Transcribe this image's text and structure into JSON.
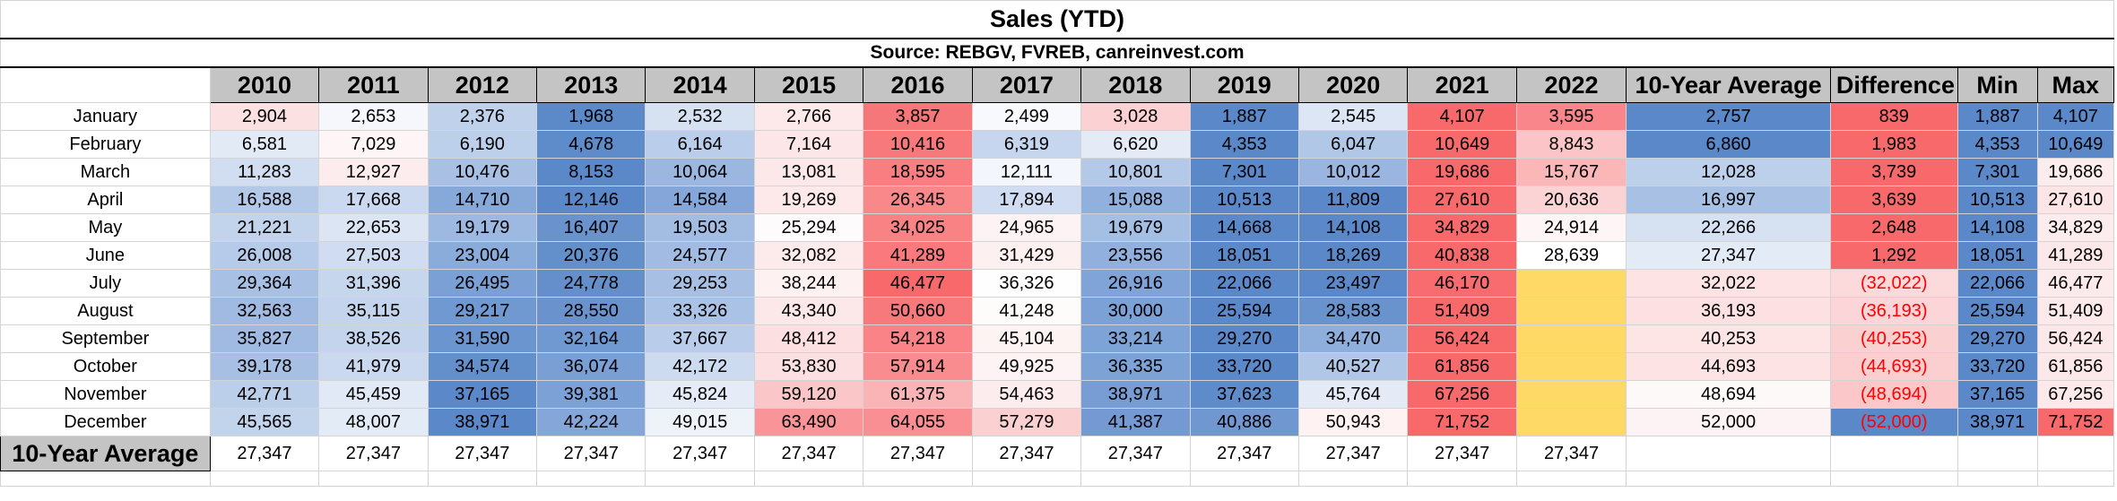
{
  "title": "Sales (YTD)",
  "source": "Source: REBGV, FVREB, canreinvest.com",
  "headers": [
    "2010",
    "2011",
    "2012",
    "2013",
    "2014",
    "2015",
    "2016",
    "2017",
    "2018",
    "2019",
    "2020",
    "2021",
    "2022",
    "10-Year Average",
    "Difference",
    "Min",
    "Max"
  ],
  "rows": [
    {
      "month": "January",
      "cells": [
        "2,904",
        "2,653",
        "2,376",
        "1,968",
        "2,532",
        "2,766",
        "3,857",
        "2,499",
        "3,028",
        "1,887",
        "2,545",
        "4,107",
        "3,595",
        "2,757",
        "839",
        "1,887",
        "4,107"
      ],
      "colors": [
        "#fbe1e2",
        "#f5f7fd",
        "#bfd1eb",
        "#5c89c8",
        "#d6e1f2",
        "#fde9ea",
        "#f5777a",
        "#f7f9fd",
        "#fcd1d3",
        "#5a88c8",
        "#dce6f4",
        "#f8696b",
        "#f9868a",
        "#5a88c8",
        "#f8696b",
        "#5a88c8",
        "#5a88c8"
      ]
    },
    {
      "month": "February",
      "cells": [
        "6,581",
        "7,029",
        "6,190",
        "4,678",
        "6,164",
        "7,164",
        "10,416",
        "6,319",
        "6,620",
        "4,353",
        "6,047",
        "10,649",
        "8,843",
        "6,860",
        "1,983",
        "4,353",
        "10,649"
      ],
      "colors": [
        "#e2eaf6",
        "#fdf5f6",
        "#bdd0eb",
        "#5e8bc9",
        "#bacdea",
        "#fce6e7",
        "#f8797c",
        "#c6d6ee",
        "#e4ebf7",
        "#5a88c8",
        "#b1c7e7",
        "#f8696b",
        "#fbc5c7",
        "#5a88c8",
        "#f8696b",
        "#5a88c8",
        "#5a88c8"
      ]
    },
    {
      "month": "March",
      "cells": [
        "11,283",
        "12,927",
        "10,476",
        "8,153",
        "10,064",
        "13,081",
        "18,595",
        "12,111",
        "10,801",
        "7,301",
        "10,012",
        "19,686",
        "15,767",
        "12,028",
        "3,739",
        "7,301",
        "19,686"
      ],
      "colors": [
        "#d1ddf1",
        "#fdeced",
        "#a7c0e4",
        "#5a88c8",
        "#9bb7e0",
        "#fce8e9",
        "#f97e81",
        "#f3f6fc",
        "#b4c9e8",
        "#5a88c8",
        "#9ab6e0",
        "#f8696b",
        "#fbb6b8",
        "#bdd0eb",
        "#f8696b",
        "#5a88c8",
        "#fdecec"
      ]
    },
    {
      "month": "April",
      "cells": [
        "16,588",
        "17,668",
        "14,710",
        "12,146",
        "14,584",
        "19,269",
        "26,345",
        "17,894",
        "15,088",
        "10,513",
        "11,809",
        "27,610",
        "20,636",
        "16,997",
        "3,639",
        "10,513",
        "27,610"
      ],
      "colors": [
        "#b4c9e8",
        "#cad9ef",
        "#87a9da",
        "#5a88c8",
        "#84a6d9",
        "#fde9ea",
        "#f9888b",
        "#d0dcf1",
        "#91b0dd",
        "#5a88c8",
        "#5a88c8",
        "#f8696b",
        "#fbd3d4",
        "#a7c0e4",
        "#f8696b",
        "#5a88c8",
        "#fde4e5"
      ]
    },
    {
      "month": "May",
      "cells": [
        "21,221",
        "22,653",
        "19,179",
        "16,407",
        "19,503",
        "25,294",
        "34,025",
        "24,965",
        "19,679",
        "14,668",
        "14,108",
        "34,829",
        "24,914",
        "22,266",
        "2,648",
        "14,108",
        "34,829"
      ],
      "colors": [
        "#c2d3ec",
        "#dbe5f4",
        "#9db8e1",
        "#6a93cd",
        "#a3bce2",
        "#fefbfc",
        "#f98285",
        "#fdf3f4",
        "#a5bee3",
        "#5a88c8",
        "#5a88c8",
        "#f8696b",
        "#fdf5f6",
        "#d6e1f2",
        "#f8696b",
        "#5a88c8",
        "#fdeced"
      ]
    },
    {
      "month": "June",
      "cells": [
        "26,008",
        "27,503",
        "23,004",
        "20,376",
        "24,577",
        "32,082",
        "41,289",
        "31,429",
        "23,556",
        "18,051",
        "18,269",
        "40,838",
        "28,639",
        "27,347",
        "1,292",
        "18,051",
        "41,289"
      ],
      "colors": [
        "#b6cae9",
        "#d0dcf1",
        "#8aacdb",
        "#6390ca",
        "#a1bbe2",
        "#fdeaeb",
        "#f9797c",
        "#fdf0f1",
        "#91b0dd",
        "#5a88c8",
        "#5a88c8",
        "#f8696b",
        "#ffffff",
        "#e3ebf7",
        "#f8696b",
        "#5a88c8",
        "#fde8e9"
      ]
    },
    {
      "month": "July",
      "cells": [
        "29,364",
        "31,396",
        "26,495",
        "24,778",
        "29,253",
        "38,244",
        "46,477",
        "36,326",
        "26,916",
        "22,066",
        "23,497",
        "46,170",
        "",
        "32,022",
        "(32,022)",
        "22,066",
        "46,477"
      ],
      "colors": [
        "#a7c0e4",
        "#c5d6ed",
        "#7aa0d5",
        "#648fcb",
        "#a6bfe3",
        "#fdf1f2",
        "#f8696b",
        "#fefefe",
        "#80a4d8",
        "#5a88c8",
        "#5a88c8",
        "#f86b6e",
        "#ffd966",
        "#fde3e4",
        "#fcd9da",
        "#5a88c8",
        "#fdeaeb"
      ]
    },
    {
      "month": "August",
      "cells": [
        "32,563",
        "35,115",
        "29,217",
        "28,550",
        "33,326",
        "43,340",
        "50,660",
        "41,248",
        "30,000",
        "25,594",
        "28,583",
        "51,409",
        "",
        "36,193",
        "(36,193)",
        "25,594",
        "51,409"
      ],
      "colors": [
        "#a0bae1",
        "#c4d4ed",
        "#7199d1",
        "#6a93ce",
        "#aac2e5",
        "#fce8e9",
        "#f8797c",
        "#fefbfb",
        "#7ba1d6",
        "#5a88c8",
        "#6893cd",
        "#f8696b",
        "#ffd966",
        "#fde0e1",
        "#fbd5d7",
        "#5a88c8",
        "#fde9ea"
      ]
    },
    {
      "month": "September",
      "cells": [
        "35,827",
        "38,526",
        "31,590",
        "32,164",
        "37,667",
        "48,412",
        "54,218",
        "45,104",
        "33,214",
        "29,270",
        "34,470",
        "56,424",
        "",
        "40,253",
        "(40,253)",
        "29,270",
        "56,424"
      ],
      "colors": [
        "#a0bae1",
        "#c4d4ed",
        "#6b95ce",
        "#7199d1",
        "#b9cdea",
        "#fcdfe0",
        "#f98386",
        "#fdf3f3",
        "#7ea3d7",
        "#5a88c8",
        "#8eaedc",
        "#f8696b",
        "#ffd966",
        "#fde4e5",
        "#fbd0d1",
        "#5a88c8",
        "#fde8e9"
      ]
    },
    {
      "month": "October",
      "cells": [
        "39,178",
        "41,979",
        "34,574",
        "36,074",
        "42,172",
        "53,830",
        "57,914",
        "49,925",
        "36,335",
        "33,720",
        "40,527",
        "61,856",
        "",
        "44,693",
        "(44,693)",
        "33,720",
        "61,856"
      ],
      "colors": [
        "#a6bfe3",
        "#cad9ef",
        "#6390ca",
        "#7a9fd5",
        "#cddbf0",
        "#fce0e1",
        "#f98c8f",
        "#fdf3f4",
        "#7ca2d6",
        "#5a88c8",
        "#b1c7e7",
        "#f8696b",
        "#ffd966",
        "#fde3e4",
        "#fbcfd0",
        "#5a88c8",
        "#fde8e9"
      ]
    },
    {
      "month": "November",
      "cells": [
        "42,771",
        "45,459",
        "37,165",
        "39,381",
        "45,824",
        "59,120",
        "61,375",
        "54,463",
        "38,971",
        "37,623",
        "45,764",
        "67,256",
        "",
        "48,694",
        "(48,694)",
        "37,165",
        "67,256"
      ],
      "colors": [
        "#bbcfea",
        "#e1e9f6",
        "#5a88c8",
        "#7ba1d6",
        "#e5ecf7",
        "#fbc6c8",
        "#fab4b6",
        "#fdeced",
        "#779dd4",
        "#5e8bc9",
        "#e4ebf7",
        "#f8696b",
        "#ffd966",
        "#fdf9f9",
        "#fbc7c8",
        "#5a88c8",
        "#fde9ea"
      ]
    },
    {
      "month": "December",
      "cells": [
        "45,565",
        "48,007",
        "38,971",
        "42,224",
        "49,015",
        "63,490",
        "64,055",
        "57,279",
        "41,387",
        "40,886",
        "50,943",
        "71,752",
        "",
        "52,000",
        "(52,000)",
        "38,971",
        "71,752"
      ],
      "colors": [
        "#c2d3ec",
        "#e3ebf7",
        "#5a88c8",
        "#84a6d9",
        "#eef3fa",
        "#f99598",
        "#f98f92",
        "#fbd0d1",
        "#7599d2",
        "#7197d1",
        "#fef2f3",
        "#f8696b",
        "#ffd966",
        "#fdf3f4",
        "#5a88c8",
        "#5a88c8",
        "#f8696b"
      ]
    }
  ],
  "average_row": {
    "label": "10-Year Average",
    "cells": [
      "27,347",
      "27,347",
      "27,347",
      "27,347",
      "27,347",
      "27,347",
      "27,347",
      "27,347",
      "27,347",
      "27,347",
      "27,347",
      "27,347",
      "27,347",
      "",
      "",
      "",
      ""
    ]
  },
  "negative_text_color": "#ff0000",
  "header_fill": "#c4c4c4"
}
